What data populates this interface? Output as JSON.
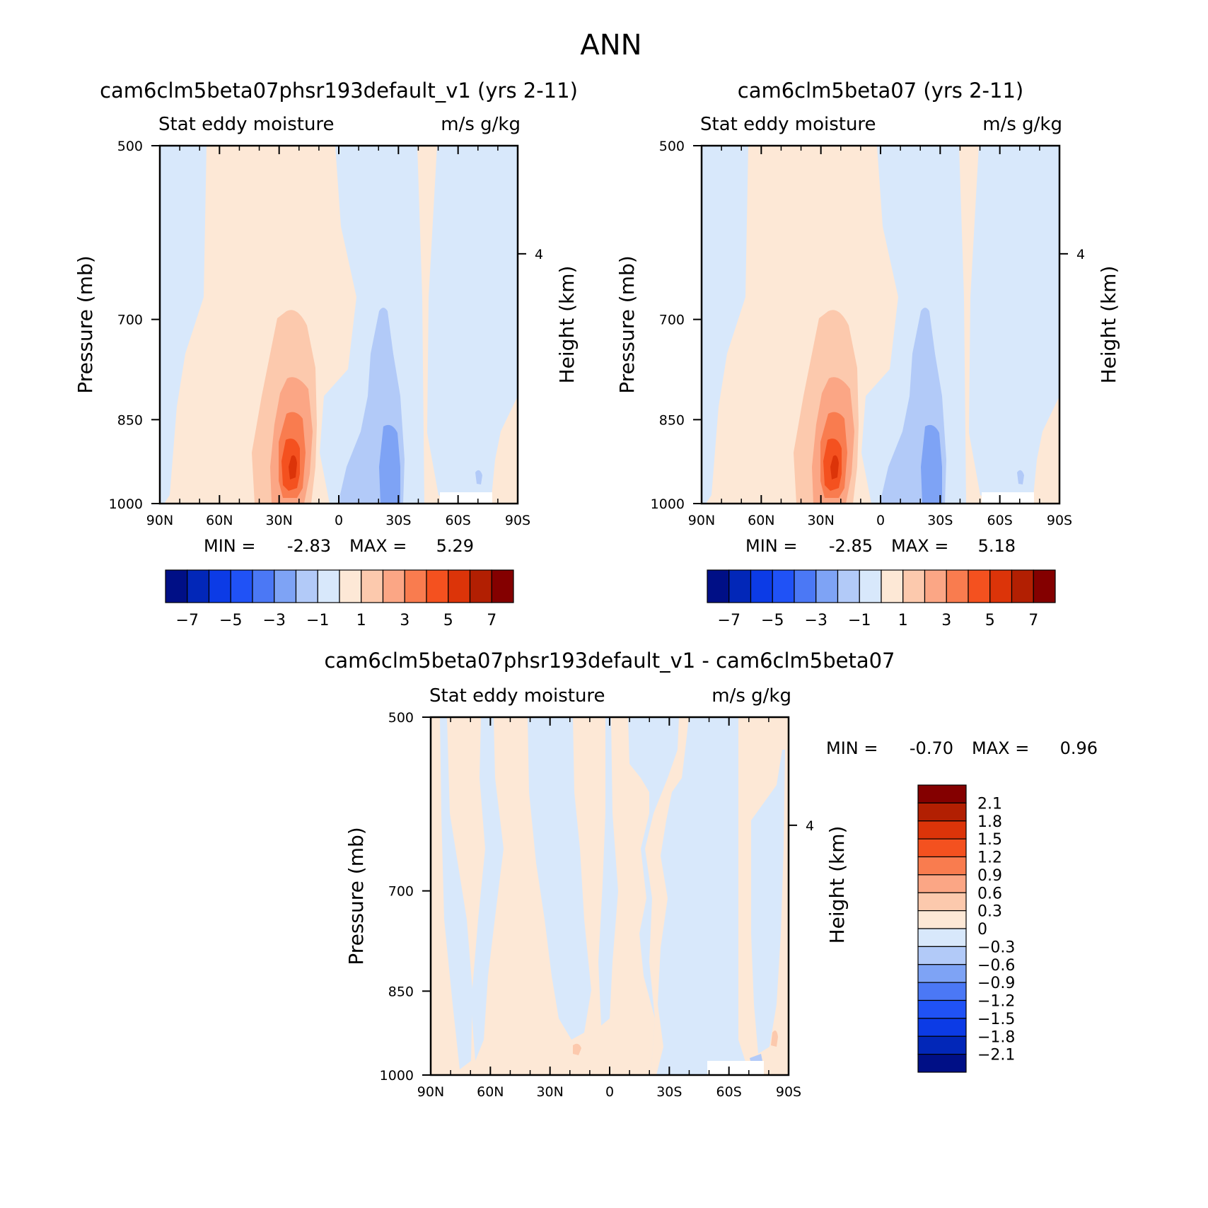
{
  "figure": {
    "title": "ANN"
  },
  "panels": [
    {
      "title": "cam6clm5beta07phsr193default_v1 (yrs 2-11)",
      "left_string": "Stat eddy moisture",
      "right_string": "m/s g/kg",
      "y_label": "Pressure (mb)",
      "right_axis_label": "Height (km)",
      "min_label": "MIN =",
      "min_value": "-2.83",
      "max_label": "MAX =",
      "max_value": "5.29"
    },
    {
      "title": "cam6clm5beta07 (yrs 2-11)",
      "left_string": "Stat eddy moisture",
      "right_string": "m/s g/kg",
      "y_label": "Pressure (mb)",
      "right_axis_label": "Height (km)",
      "min_label": "MIN =",
      "min_value": "-2.85",
      "max_label": "MAX =",
      "max_value": "5.18"
    },
    {
      "title": "cam6clm5beta07phsr193default_v1 - cam6clm5beta07",
      "left_string": "Stat eddy moisture",
      "right_string": "m/s g/kg",
      "y_label": "Pressure (mb)",
      "right_axis_label": "Height (km)",
      "min_label": "MIN =",
      "min_value": "-0.70",
      "max_label": "MAX =",
      "max_value": "0.96"
    }
  ],
  "chart_data": [
    {
      "type": "heatmap",
      "panel": 0,
      "x_ticks": [
        "90N",
        "60N",
        "30N",
        "0",
        "30S",
        "60S",
        "90S"
      ],
      "x_tick_values": [
        90,
        60,
        30,
        0,
        -30,
        -60,
        -90
      ],
      "xlim": [
        90,
        -90
      ],
      "y_ticks": [
        "500",
        "700",
        "850",
        "1000"
      ],
      "y_tick_values": [
        500,
        700,
        850,
        1000
      ],
      "ylim": [
        1000,
        500
      ],
      "right_ticks": [
        "4"
      ],
      "right_tick_values_km": [
        4
      ],
      "min": -2.83,
      "max": 5.29,
      "features": [
        {
          "name": "positive core",
          "lat": 25,
          "p_top": 720,
          "p_bottom": 1000,
          "peak": 5.3
        },
        {
          "name": "negative core",
          "lat": -27,
          "p_top": 700,
          "p_bottom": 1000,
          "peak": -2.8
        }
      ]
    },
    {
      "type": "heatmap",
      "panel": 1,
      "x_ticks": [
        "90N",
        "60N",
        "30N",
        "0",
        "30S",
        "60S",
        "90S"
      ],
      "x_tick_values": [
        90,
        60,
        30,
        0,
        -30,
        -60,
        -90
      ],
      "xlim": [
        90,
        -90
      ],
      "y_ticks": [
        "500",
        "700",
        "850",
        "1000"
      ],
      "y_tick_values": [
        500,
        700,
        850,
        1000
      ],
      "ylim": [
        1000,
        500
      ],
      "right_ticks": [
        "4"
      ],
      "right_tick_values_km": [
        4
      ],
      "min": -2.85,
      "max": 5.18,
      "features": [
        {
          "name": "positive core",
          "lat": 25,
          "p_top": 720,
          "p_bottom": 1000,
          "peak": 5.2
        },
        {
          "name": "negative core",
          "lat": -27,
          "p_top": 700,
          "p_bottom": 1000,
          "peak": -2.8
        }
      ]
    },
    {
      "type": "heatmap",
      "panel": 2,
      "x_ticks": [
        "90N",
        "60N",
        "30N",
        "0",
        "30S",
        "60S",
        "90S"
      ],
      "x_tick_values": [
        90,
        60,
        30,
        0,
        -30,
        -60,
        -90
      ],
      "xlim": [
        90,
        -90
      ],
      "y_ticks": [
        "500",
        "700",
        "850",
        "1000"
      ],
      "y_tick_values": [
        500,
        700,
        850,
        1000
      ],
      "ylim": [
        1000,
        500
      ],
      "right_ticks": [
        "4"
      ],
      "right_tick_values_km": [
        4
      ],
      "min": -0.7,
      "max": 0.96
    }
  ],
  "colorbars": {
    "abs": {
      "colors": [
        "#000f86",
        "#0227b8",
        "#0c3be6",
        "#2052f6",
        "#4b78f5",
        "#7ea3f5",
        "#b2caf8",
        "#d8e8fb",
        "#fde8d6",
        "#fcc9ad",
        "#fba685",
        "#f97c4f",
        "#f4511f",
        "#dc3409",
        "#b21f02",
        "#840000"
      ],
      "labels": [
        "-7",
        "-5",
        "-3",
        "-1",
        "1",
        "3",
        "5",
        "7"
      ]
    },
    "diff": {
      "colors": [
        "#840000",
        "#b21f02",
        "#dc3409",
        "#f4511f",
        "#f97c4f",
        "#fba685",
        "#fcc9ad",
        "#fde8d6",
        "#d8e8fb",
        "#b2caf8",
        "#7ea3f5",
        "#4b78f5",
        "#2052f6",
        "#0c3be6",
        "#0227b8",
        "#000f86"
      ],
      "labels": [
        "2.1",
        "1.8",
        "1.5",
        "1.2",
        "0.9",
        "0.6",
        "0.3",
        "0",
        "-0.3",
        "-0.6",
        "-0.9",
        "-1.2",
        "-1.5",
        "-1.8",
        "-2.1"
      ]
    }
  }
}
